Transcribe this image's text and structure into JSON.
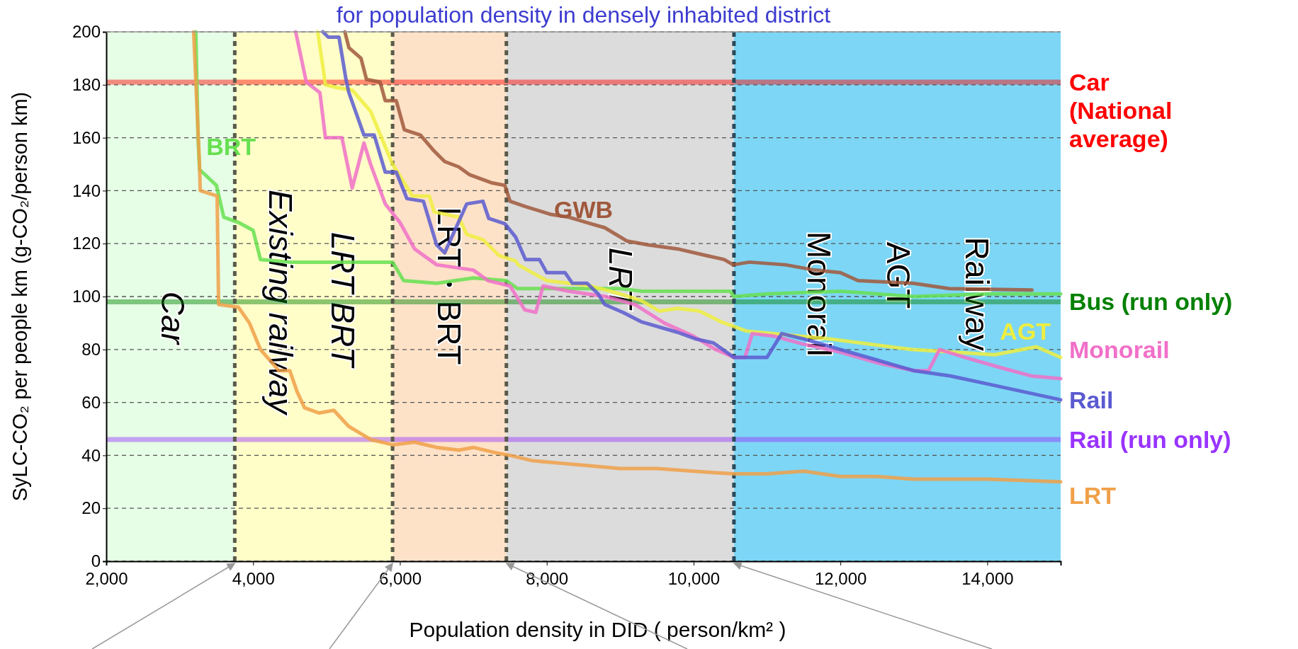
{
  "chart_data": {
    "type": "line",
    "title": "for population density in densely inhabited district",
    "xlabel": "Population density in DID ( person/km² )",
    "ylabel": "SyLC-CO₂ per people km (g-CO₂/person km)",
    "xlim": [
      2000,
      15000
    ],
    "xticks": [
      {
        "value": 2000,
        "label": "2,000"
      },
      {
        "value": 4000,
        "label": "4,000"
      },
      {
        "value": 6000,
        "label": "6,000"
      },
      {
        "value": 8000,
        "label": "8,000"
      },
      {
        "value": 10000,
        "label": "10,000"
      },
      {
        "value": 12000,
        "label": "12,000"
      },
      {
        "value": 14000,
        "label": "14,000"
      }
    ],
    "ylim": [
      0,
      200
    ],
    "yticks": [
      0,
      20,
      40,
      60,
      80,
      100,
      120,
      140,
      160,
      180,
      200
    ],
    "grid": "y",
    "marker": "none",
    "line_style": "solid",
    "series": [
      {
        "name": "BRT",
        "color": "#66e050",
        "x": [
          3220,
          3250,
          3270,
          3500,
          3600,
          3800,
          4000,
          4100,
          4500,
          5900,
          6050,
          6500,
          7000,
          7450,
          7600,
          8500,
          9000,
          9300,
          10500,
          10550,
          11000,
          12000,
          12500,
          13000,
          14000,
          15000
        ],
        "values": [
          200,
          160,
          148,
          142,
          130,
          128,
          125,
          114,
          113,
          113,
          106,
          105,
          107,
          106,
          103,
          103,
          103,
          102,
          102,
          100,
          101,
          102,
          101,
          100,
          101,
          101
        ]
      },
      {
        "name": "GWB",
        "color": "#a0583c",
        "x": [
          5250,
          5305,
          5470,
          5545,
          5730,
          5800,
          5950,
          6060,
          6280,
          6465,
          6610,
          6800,
          6950,
          7245,
          7430,
          7500,
          7710,
          8060,
          8300,
          8600,
          8790,
          9090,
          9380,
          9780,
          10170,
          10415,
          10540,
          10760,
          11250,
          11650,
          12000,
          12240,
          12990,
          13480,
          14610
        ],
        "values": [
          200,
          194,
          190,
          182,
          181,
          174,
          174,
          163,
          161,
          155,
          151,
          149,
          146,
          143,
          142,
          136,
          134,
          131,
          130,
          127.5,
          126,
          121,
          119.5,
          118,
          115.5,
          114,
          112,
          113,
          112,
          110,
          109,
          106,
          105,
          103,
          102.5
        ]
      },
      {
        "name": "AGT",
        "color": "#eeee40",
        "x": [
          4880,
          4950,
          4985,
          5130,
          5350,
          5600,
          5900,
          6170,
          6400,
          6465,
          6800,
          6910,
          7130,
          7350,
          7575,
          7610,
          8000,
          8600,
          9000,
          9285,
          9535,
          9780,
          10080,
          10370,
          10520,
          10716,
          11845,
          12970,
          14100,
          14670,
          15000
        ],
        "values": [
          200,
          187,
          180,
          179,
          178,
          170,
          150,
          138,
          138,
          132,
          130,
          123.5,
          121.5,
          115.5,
          113.5,
          112,
          106,
          104,
          101,
          98.5,
          94.5,
          95.5,
          94.5,
          90.5,
          89,
          87,
          84,
          80,
          78,
          81,
          77
        ]
      },
      {
        "name": "Monorail",
        "color": "#f070c8",
        "x": [
          4580,
          4725,
          4910,
          4985,
          5210,
          5350,
          5510,
          5600,
          5800,
          6000,
          6200,
          6500,
          7000,
          7200,
          7500,
          7700,
          7850,
          7950,
          8300,
          8800,
          9200,
          9600,
          10000,
          10300,
          10550,
          10700,
          10800,
          11100,
          11500,
          12000,
          12500,
          13000,
          13200,
          13350,
          13700,
          14200,
          14600,
          15000
        ],
        "values": [
          200,
          181,
          177,
          160,
          160,
          141,
          158,
          150,
          135,
          128,
          118,
          112,
          110,
          106,
          104,
          95,
          94,
          104,
          102,
          100,
          97,
          90,
          85,
          80,
          77,
          77,
          86,
          85,
          82,
          79,
          75,
          72,
          72,
          80,
          77,
          73,
          70,
          69
        ]
      },
      {
        "name": "Rail",
        "color": "#5a5ad0",
        "x": [
          4950,
          5025,
          5170,
          5265,
          5305,
          5510,
          5650,
          5800,
          5950,
          6095,
          6320,
          6500,
          6610,
          6910,
          7130,
          7210,
          7430,
          7575,
          7710,
          7900,
          8000,
          8250,
          8350,
          8550,
          8700,
          8790,
          9040,
          9285,
          9780,
          10030,
          10270,
          10550,
          11000,
          11200,
          11500,
          12000,
          12500,
          13000,
          13500,
          14000,
          14500,
          15000
        ],
        "values": [
          200,
          198,
          198,
          182,
          177,
          161,
          161,
          147,
          147,
          137,
          136,
          119.5,
          116.5,
          135,
          136,
          129.5,
          127.5,
          122.5,
          114,
          114,
          109,
          109,
          105,
          105,
          101,
          97,
          94,
          90.5,
          86.5,
          84,
          82.5,
          77,
          77,
          86,
          84,
          80,
          76,
          72,
          70,
          67,
          64,
          61
        ]
      },
      {
        "name": "LRT",
        "color": "#f0a048",
        "x": [
          3190,
          3270,
          3280,
          3510,
          3530,
          3800,
          3950,
          4100,
          4350,
          4500,
          4600,
          4700,
          4900,
          5100,
          5300,
          5600,
          5900,
          6200,
          6500,
          6800,
          7000,
          7300,
          7500,
          7800,
          8200,
          8600,
          9000,
          9500,
          10000,
          10550,
          11000,
          11500,
          12000,
          12500,
          13000,
          14000,
          15000
        ],
        "values": [
          200,
          150,
          140,
          138,
          97,
          96,
          90,
          80,
          72,
          72,
          64,
          58,
          56,
          57,
          51,
          46,
          44,
          45,
          43,
          42,
          43,
          41,
          40,
          38,
          37,
          36,
          35,
          35,
          34,
          33,
          33,
          34,
          32,
          32,
          31,
          31,
          30
        ]
      }
    ],
    "ref_lines": [
      {
        "axis": "y",
        "value": 181,
        "label": "Car (National average)",
        "color": "#ff0000",
        "line_style": "solid"
      },
      {
        "axis": "y",
        "value": 98,
        "label": "Bus (run only)",
        "color": "#008000",
        "line_style": "solid"
      },
      {
        "axis": "y",
        "value": 46,
        "label": "Rail (run only)",
        "color": "#9933ff",
        "line_style": "solid"
      },
      {
        "axis": "x",
        "value": 3750,
        "color": "#5a5a4a",
        "line_style": "dashed"
      },
      {
        "axis": "x",
        "value": 5900,
        "color": "#5a5a4a",
        "line_style": "dashed"
      },
      {
        "axis": "x",
        "value": 7450,
        "color": "#5a5a4a",
        "line_style": "dashed"
      },
      {
        "axis": "x",
        "value": 10550,
        "color": "#2a4a5a",
        "line_style": "dashed"
      }
    ],
    "bands": [
      {
        "axis": "x",
        "from": 2000,
        "to": 3750,
        "color": "#e6fde6"
      },
      {
        "axis": "x",
        "from": 3750,
        "to": 5900,
        "color": "#fffdc8"
      },
      {
        "axis": "x",
        "from": 5900,
        "to": 7450,
        "color": "#fde2c8"
      },
      {
        "axis": "x",
        "from": 7450,
        "to": 10550,
        "color": "#dcdcdc"
      },
      {
        "axis": "x",
        "from": 10550,
        "to": 15000,
        "color": "#7dd6f5"
      }
    ],
    "annotations": [
      "Car",
      "Existing railway",
      "LRT BRT",
      "LRT・BRT",
      "LRT",
      "Monorail",
      "AGT",
      "Railway"
    ]
  }
}
